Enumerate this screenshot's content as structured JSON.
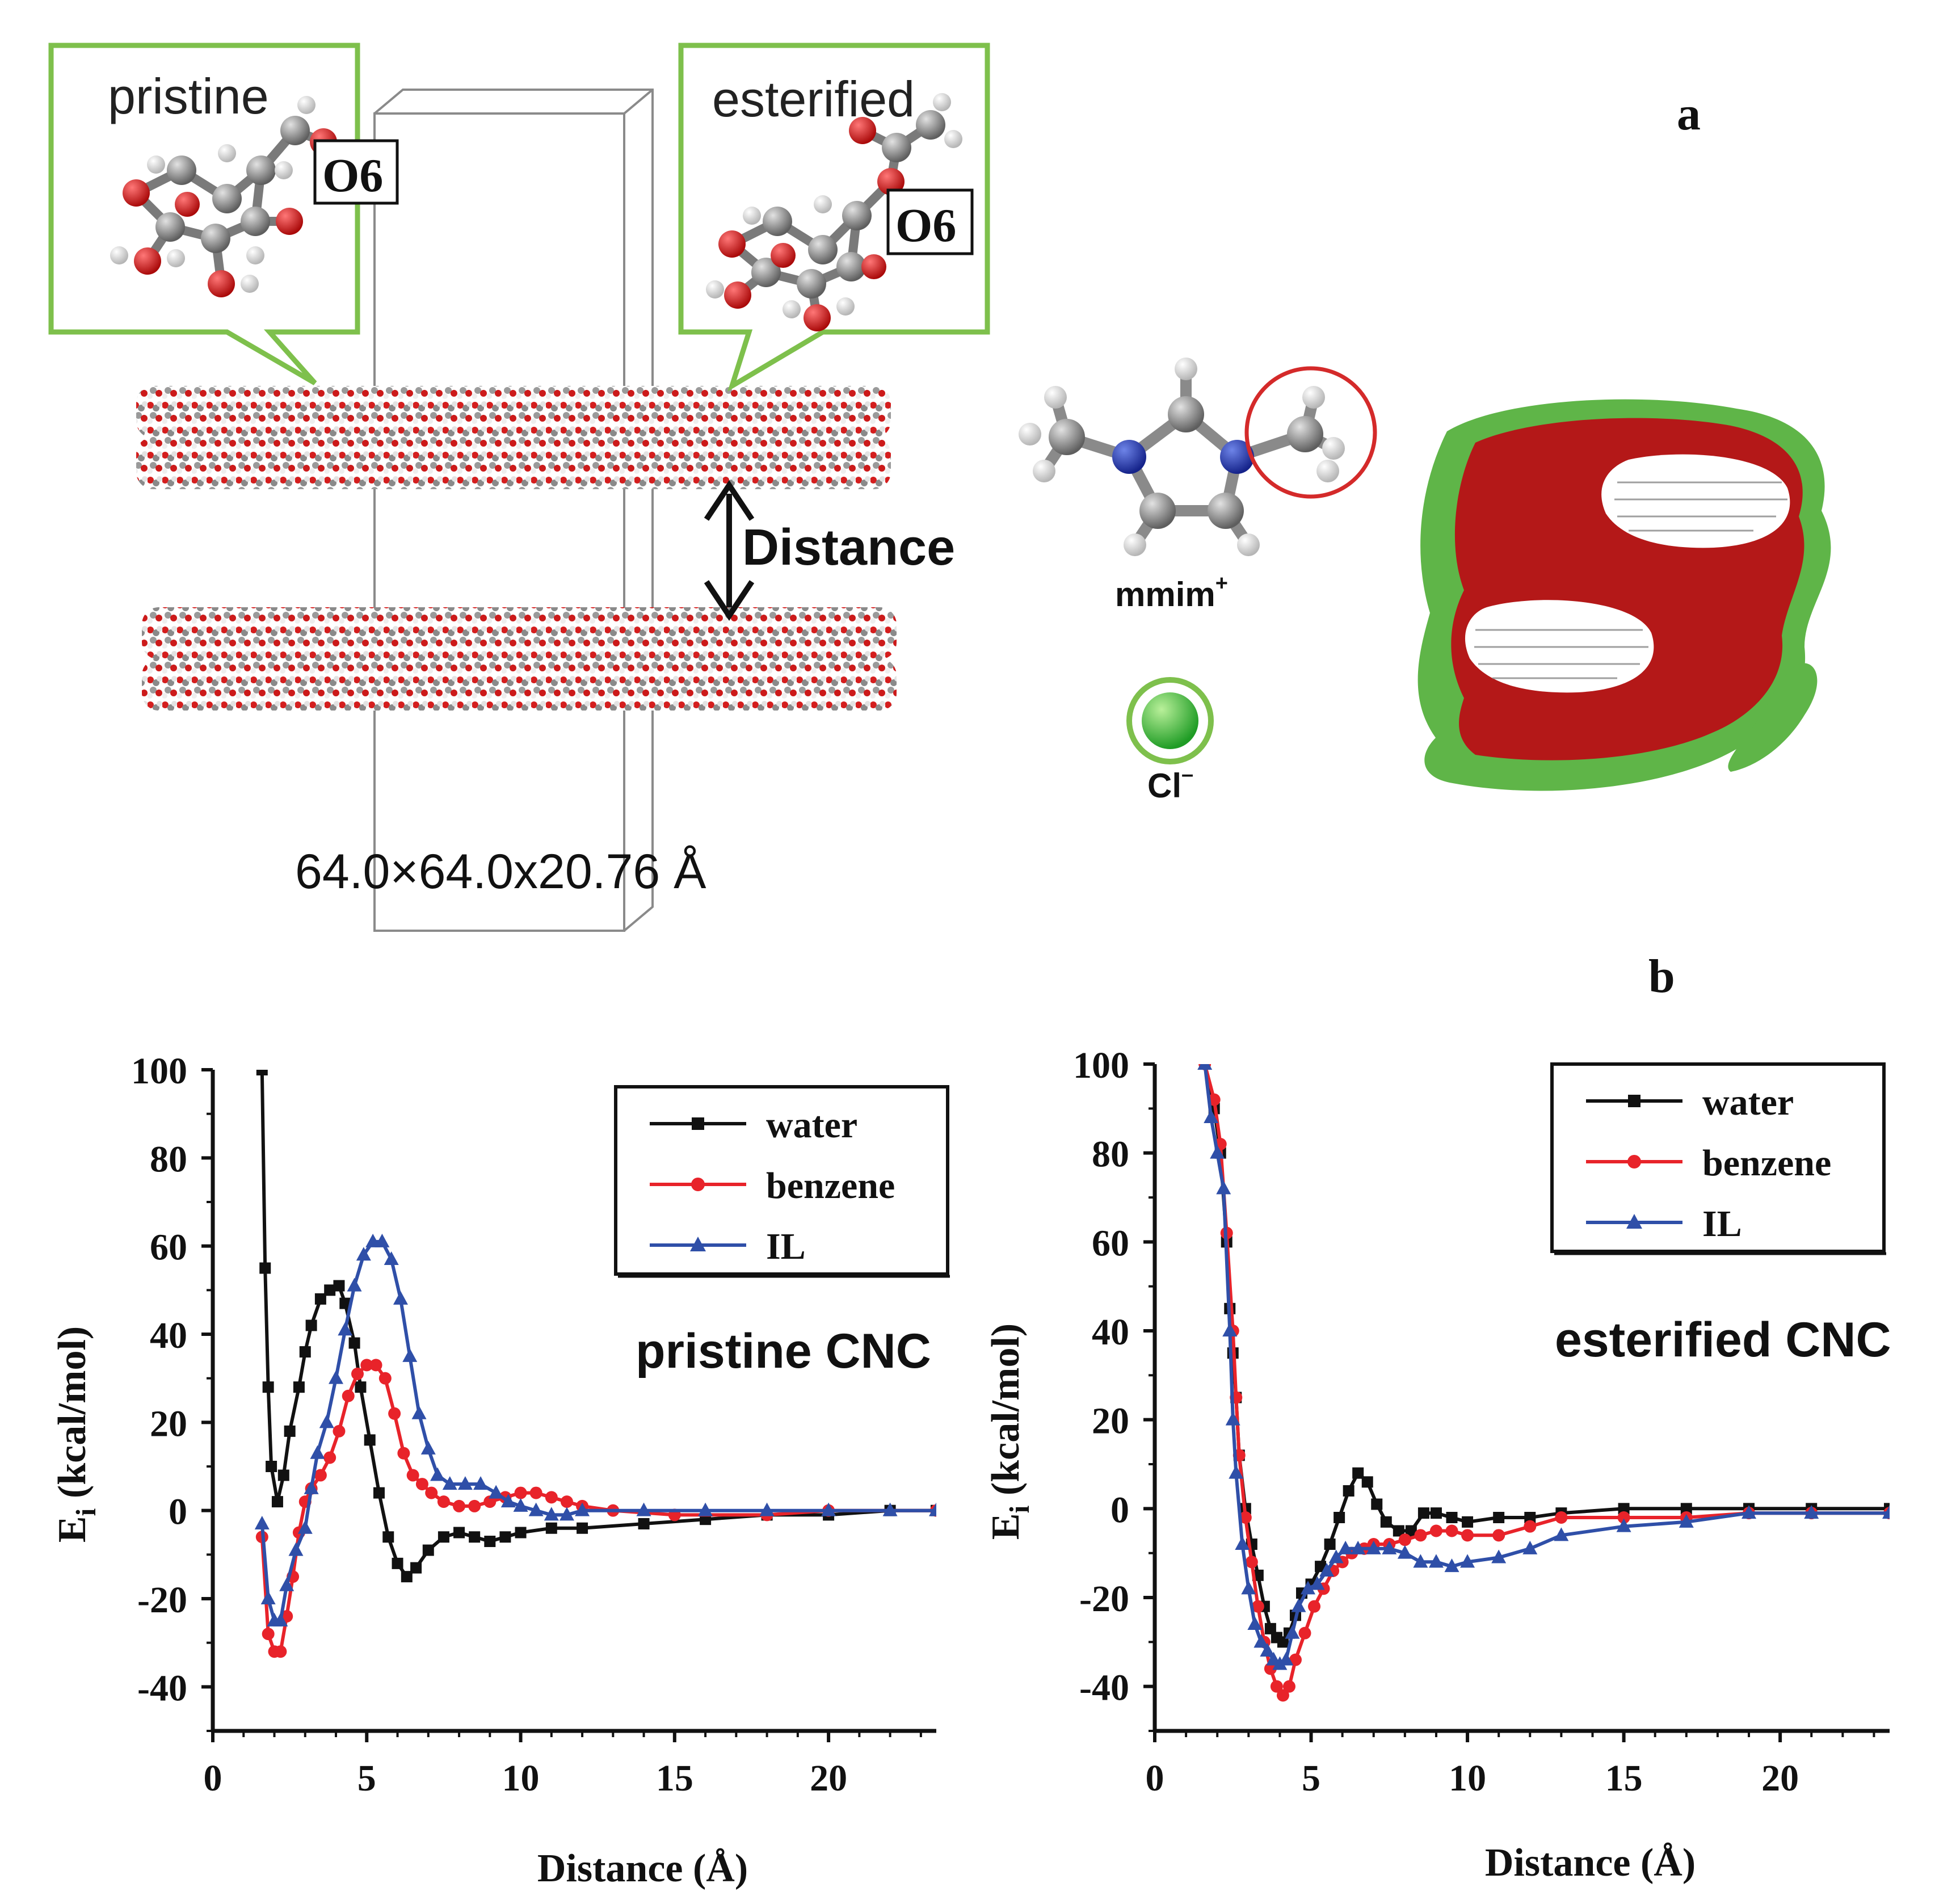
{
  "panel_a": {
    "label": "a",
    "pristine_title": "pristine",
    "esterified_title": "esterified",
    "o6_label": "O6",
    "distance_label": "Distance",
    "box_dims": "64.0×64.0x20.76 Å",
    "cation_label": "mmim",
    "cation_charge": "+",
    "anion_label": "Cl",
    "anion_charge": "–"
  },
  "panel_b": {
    "label": "b"
  },
  "colors": {
    "water": "#111111",
    "benzene": "#e8232a",
    "il": "#2f4fa8",
    "frame_green": "#7ec04c"
  },
  "chart_data": [
    {
      "type": "line",
      "title": "pristine CNC",
      "xlabel": "Distance (Å)",
      "ylabel": "Ei (kcal/mol)",
      "ylabel_main": "E",
      "ylabel_sub": "i",
      "ylabel_rest": " (kcal/mol)",
      "xlim": [
        0,
        23.5
      ],
      "ylim": [
        -50,
        100
      ],
      "xticks": [
        0,
        5,
        10,
        15,
        20
      ],
      "yticks": [
        100,
        80,
        60,
        40,
        20,
        0,
        -20,
        -40
      ],
      "legend": [
        "water",
        "benzene",
        "IL"
      ],
      "series": [
        {
          "name": "water",
          "marker": "square",
          "points": [
            [
              1.6,
              100
            ],
            [
              1.7,
              55
            ],
            [
              1.8,
              28
            ],
            [
              1.9,
              10
            ],
            [
              2.1,
              2
            ],
            [
              2.3,
              8
            ],
            [
              2.5,
              18
            ],
            [
              2.8,
              28
            ],
            [
              3.0,
              36
            ],
            [
              3.2,
              42
            ],
            [
              3.5,
              48
            ],
            [
              3.8,
              50
            ],
            [
              4.1,
              51
            ],
            [
              4.3,
              47
            ],
            [
              4.6,
              38
            ],
            [
              4.8,
              28
            ],
            [
              5.1,
              16
            ],
            [
              5.4,
              4
            ],
            [
              5.7,
              -6
            ],
            [
              6.0,
              -12
            ],
            [
              6.3,
              -15
            ],
            [
              6.6,
              -13
            ],
            [
              7.0,
              -9
            ],
            [
              7.5,
              -6
            ],
            [
              8.0,
              -5
            ],
            [
              8.5,
              -6
            ],
            [
              9.0,
              -7
            ],
            [
              9.5,
              -6
            ],
            [
              10.0,
              -5
            ],
            [
              11.0,
              -4
            ],
            [
              12.0,
              -4
            ],
            [
              14.0,
              -3
            ],
            [
              16.0,
              -2
            ],
            [
              18.0,
              -1
            ],
            [
              20.0,
              -1
            ],
            [
              22.0,
              0
            ],
            [
              23.5,
              0
            ]
          ]
        },
        {
          "name": "benzene",
          "marker": "circle",
          "points": [
            [
              1.6,
              -6
            ],
            [
              1.8,
              -28
            ],
            [
              2.0,
              -32
            ],
            [
              2.2,
              -32
            ],
            [
              2.4,
              -24
            ],
            [
              2.6,
              -15
            ],
            [
              2.8,
              -5
            ],
            [
              3.0,
              2
            ],
            [
              3.2,
              5
            ],
            [
              3.5,
              8
            ],
            [
              3.8,
              12
            ],
            [
              4.1,
              18
            ],
            [
              4.4,
              26
            ],
            [
              4.7,
              31
            ],
            [
              5.0,
              33
            ],
            [
              5.3,
              33
            ],
            [
              5.6,
              30
            ],
            [
              5.9,
              22
            ],
            [
              6.2,
              13
            ],
            [
              6.5,
              8
            ],
            [
              6.8,
              6
            ],
            [
              7.1,
              4
            ],
            [
              7.5,
              2
            ],
            [
              8.0,
              1
            ],
            [
              8.5,
              1
            ],
            [
              9.0,
              2
            ],
            [
              9.5,
              3
            ],
            [
              10.0,
              4
            ],
            [
              10.5,
              4
            ],
            [
              11.0,
              3
            ],
            [
              11.5,
              2
            ],
            [
              12.0,
              1
            ],
            [
              13.0,
              0
            ],
            [
              15.0,
              -1
            ],
            [
              18.0,
              -1
            ],
            [
              20.0,
              0
            ],
            [
              23.5,
              0
            ]
          ]
        },
        {
          "name": "IL",
          "marker": "triangle",
          "points": [
            [
              1.6,
              -3
            ],
            [
              1.8,
              -20
            ],
            [
              2.0,
              -25
            ],
            [
              2.2,
              -25
            ],
            [
              2.4,
              -17
            ],
            [
              2.7,
              -9
            ],
            [
              3.0,
              -4
            ],
            [
              3.2,
              5
            ],
            [
              3.4,
              13
            ],
            [
              3.7,
              20
            ],
            [
              4.0,
              30
            ],
            [
              4.3,
              41
            ],
            [
              4.6,
              51
            ],
            [
              4.9,
              58
            ],
            [
              5.2,
              61
            ],
            [
              5.5,
              61
            ],
            [
              5.8,
              57
            ],
            [
              6.1,
              48
            ],
            [
              6.4,
              35
            ],
            [
              6.7,
              22
            ],
            [
              7.0,
              14
            ],
            [
              7.3,
              8
            ],
            [
              7.7,
              6
            ],
            [
              8.2,
              6
            ],
            [
              8.7,
              6
            ],
            [
              9.2,
              4
            ],
            [
              9.6,
              2
            ],
            [
              10.0,
              1
            ],
            [
              10.5,
              0
            ],
            [
              11.0,
              -1
            ],
            [
              11.5,
              -1
            ],
            [
              12.0,
              0
            ],
            [
              14.0,
              0
            ],
            [
              16.0,
              0
            ],
            [
              18.0,
              0
            ],
            [
              20.0,
              0
            ],
            [
              22.0,
              0
            ],
            [
              23.5,
              0
            ]
          ]
        }
      ]
    },
    {
      "type": "line",
      "title": "esterified CNC",
      "xlabel": "Distance (Å)",
      "ylabel": "Ei (kcal/mol)",
      "ylabel_main": "E",
      "ylabel_sub": "i",
      "ylabel_rest": " (kcal/mol)",
      "xlim": [
        0,
        23.5
      ],
      "ylim": [
        -50,
        100
      ],
      "xticks": [
        0,
        5,
        10,
        15,
        20
      ],
      "yticks": [
        100,
        80,
        60,
        40,
        20,
        0,
        -20,
        -40
      ],
      "legend": [
        "water",
        "benzene",
        "IL"
      ],
      "series": [
        {
          "name": "water",
          "marker": "square",
          "points": [
            [
              1.6,
              100
            ],
            [
              1.9,
              90
            ],
            [
              2.1,
              80
            ],
            [
              2.3,
              60
            ],
            [
              2.4,
              45
            ],
            [
              2.5,
              35
            ],
            [
              2.6,
              25
            ],
            [
              2.7,
              12
            ],
            [
              2.9,
              0
            ],
            [
              3.1,
              -8
            ],
            [
              3.3,
              -15
            ],
            [
              3.5,
              -22
            ],
            [
              3.7,
              -27
            ],
            [
              3.9,
              -29
            ],
            [
              4.1,
              -30
            ],
            [
              4.3,
              -28
            ],
            [
              4.5,
              -24
            ],
            [
              4.7,
              -19
            ],
            [
              5.0,
              -17
            ],
            [
              5.3,
              -13
            ],
            [
              5.6,
              -8
            ],
            [
              5.9,
              -2
            ],
            [
              6.2,
              4
            ],
            [
              6.5,
              8
            ],
            [
              6.8,
              6
            ],
            [
              7.1,
              1
            ],
            [
              7.4,
              -3
            ],
            [
              7.8,
              -5
            ],
            [
              8.2,
              -5
            ],
            [
              8.6,
              -1
            ],
            [
              9.0,
              -1
            ],
            [
              9.5,
              -2
            ],
            [
              10.0,
              -3
            ],
            [
              11.0,
              -2
            ],
            [
              12.0,
              -2
            ],
            [
              13.0,
              -1
            ],
            [
              15.0,
              0
            ],
            [
              17.0,
              0
            ],
            [
              19.0,
              0
            ],
            [
              21.0,
              0
            ],
            [
              23.5,
              0
            ]
          ]
        },
        {
          "name": "benzene",
          "marker": "circle",
          "points": [
            [
              1.6,
              100
            ],
            [
              1.9,
              92
            ],
            [
              2.1,
              82
            ],
            [
              2.3,
              62
            ],
            [
              2.5,
              40
            ],
            [
              2.6,
              25
            ],
            [
              2.7,
              12
            ],
            [
              2.9,
              -2
            ],
            [
              3.1,
              -12
            ],
            [
              3.3,
              -22
            ],
            [
              3.5,
              -30
            ],
            [
              3.7,
              -36
            ],
            [
              3.9,
              -40
            ],
            [
              4.1,
              -42
            ],
            [
              4.3,
              -40
            ],
            [
              4.5,
              -34
            ],
            [
              4.8,
              -28
            ],
            [
              5.1,
              -22
            ],
            [
              5.4,
              -18
            ],
            [
              5.7,
              -14
            ],
            [
              6.0,
              -12
            ],
            [
              6.3,
              -10
            ],
            [
              6.7,
              -9
            ],
            [
              7.0,
              -8
            ],
            [
              7.5,
              -8
            ],
            [
              8.0,
              -7
            ],
            [
              8.5,
              -6
            ],
            [
              9.0,
              -5
            ],
            [
              9.5,
              -5
            ],
            [
              10.0,
              -6
            ],
            [
              11.0,
              -6
            ],
            [
              12.0,
              -4
            ],
            [
              13.0,
              -2
            ],
            [
              15.0,
              -2
            ],
            [
              17.0,
              -2
            ],
            [
              19.0,
              -1
            ],
            [
              21.0,
              -1
            ],
            [
              23.5,
              -1
            ]
          ]
        },
        {
          "name": "IL",
          "marker": "triangle",
          "points": [
            [
              1.6,
              100
            ],
            [
              1.8,
              88
            ],
            [
              2.0,
              80
            ],
            [
              2.2,
              72
            ],
            [
              2.4,
              40
            ],
            [
              2.5,
              20
            ],
            [
              2.6,
              8
            ],
            [
              2.8,
              -8
            ],
            [
              3.0,
              -18
            ],
            [
              3.2,
              -26
            ],
            [
              3.4,
              -30
            ],
            [
              3.6,
              -32
            ],
            [
              3.8,
              -34
            ],
            [
              4.0,
              -35
            ],
            [
              4.2,
              -34
            ],
            [
              4.4,
              -28
            ],
            [
              4.6,
              -22
            ],
            [
              4.9,
              -18
            ],
            [
              5.2,
              -17
            ],
            [
              5.5,
              -14
            ],
            [
              5.8,
              -11
            ],
            [
              6.1,
              -9
            ],
            [
              6.5,
              -9
            ],
            [
              7.0,
              -9
            ],
            [
              7.5,
              -9
            ],
            [
              8.0,
              -10
            ],
            [
              8.5,
              -12
            ],
            [
              9.0,
              -12
            ],
            [
              9.5,
              -13
            ],
            [
              10.0,
              -12
            ],
            [
              11.0,
              -11
            ],
            [
              12.0,
              -9
            ],
            [
              13.0,
              -6
            ],
            [
              15.0,
              -4
            ],
            [
              17.0,
              -3
            ],
            [
              19.0,
              -1
            ],
            [
              21.0,
              -1
            ],
            [
              23.5,
              -1
            ]
          ]
        }
      ]
    }
  ]
}
